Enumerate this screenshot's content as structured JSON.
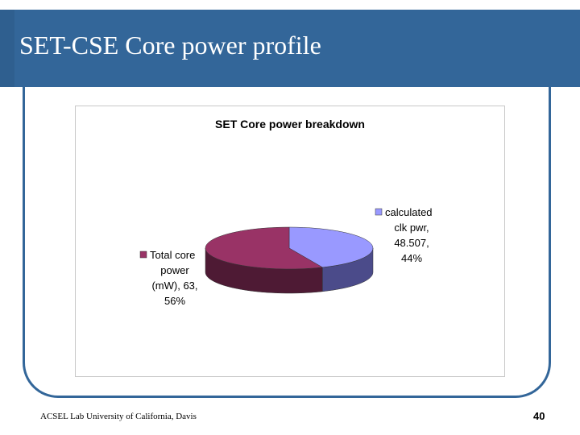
{
  "slide": {
    "title": "SET-CSE Core power profile",
    "footer": "ACSEL Lab University of California, Davis",
    "page_number": "40"
  },
  "colors": {
    "title_bar": "#336699",
    "frame": "#336699"
  },
  "chart_data": {
    "type": "pie",
    "style": "3d",
    "title": "SET Core power breakdown",
    "slices": [
      {
        "label_lines": [
          "calculated",
          "clk pwr,",
          "48.507,",
          "44%"
        ],
        "value": 48.507,
        "percent": 44,
        "color": "#9999ff",
        "side_color": "#4b4b8a",
        "legend_position": "right"
      },
      {
        "label_lines": [
          "Total core",
          "power",
          "(mW), 63,",
          "56%"
        ],
        "value": 63,
        "percent": 56,
        "color": "#993366",
        "side_color": "#4e1a34",
        "legend_position": "left"
      }
    ]
  }
}
